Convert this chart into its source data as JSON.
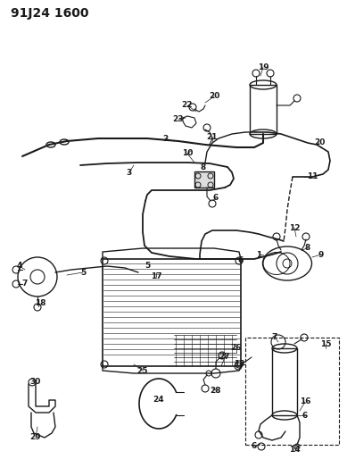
{
  "title_code": "91J24 1600",
  "background_color": "#ffffff",
  "line_color": "#1a1a1a",
  "fig_width": 3.89,
  "fig_height": 5.33,
  "dpi": 100,
  "title_fontsize": 10,
  "label_fontsize": 6.5
}
